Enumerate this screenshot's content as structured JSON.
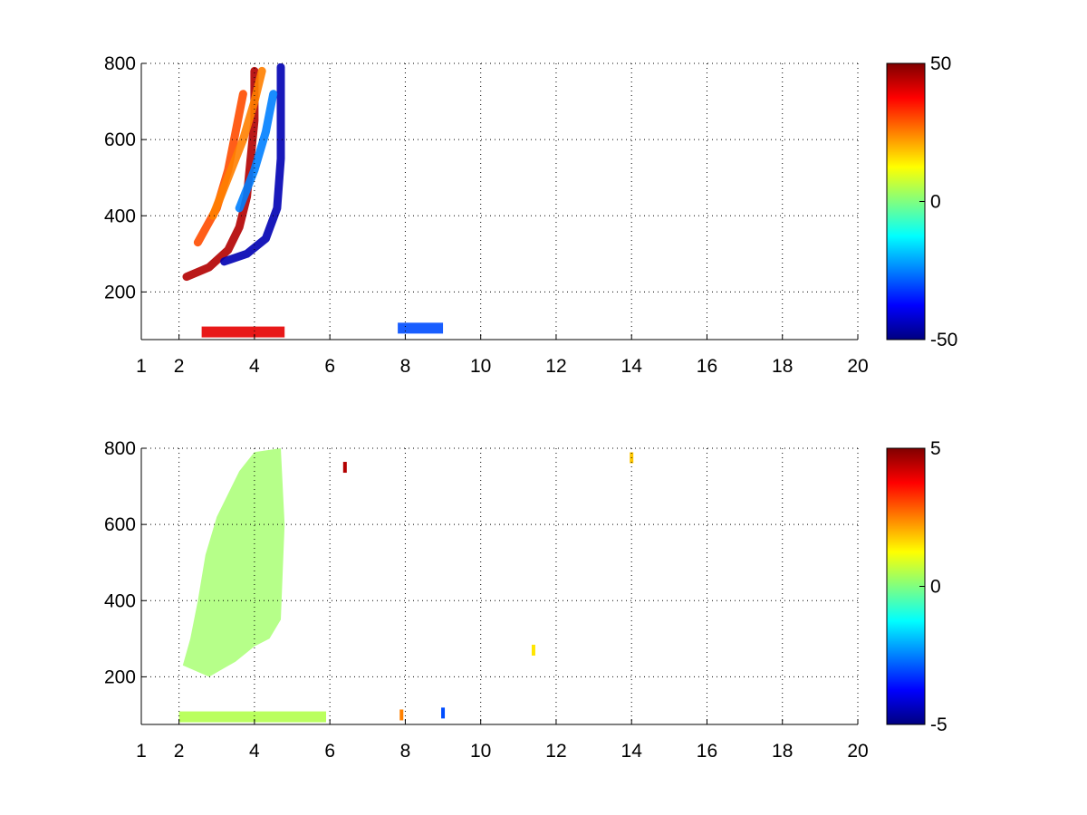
{
  "chart_data": [
    {
      "type": "heatmap",
      "title": "",
      "xlabel": "",
      "ylabel": "",
      "x_scale": "linear",
      "xlim": [
        1,
        20
      ],
      "ylim": [
        75,
        800
      ],
      "x_ticks": [
        1,
        2,
        4,
        6,
        8,
        10,
        12,
        14,
        16,
        18,
        20
      ],
      "y_ticks": [
        200,
        400,
        600,
        800
      ],
      "grid": true,
      "colormap": "jet",
      "colorbar": {
        "range": [
          -50,
          50
        ],
        "ticks": [
          50,
          0,
          -50
        ]
      },
      "features": [
        {
          "kind": "curve",
          "sign": "positive",
          "value": 45,
          "points": [
            [
              2.2,
              240
            ],
            [
              2.8,
              265
            ],
            [
              3.3,
              310
            ],
            [
              3.6,
              370
            ],
            [
              3.8,
              450
            ],
            [
              3.9,
              550
            ],
            [
              4.0,
              650
            ],
            [
              4.0,
              780
            ]
          ]
        },
        {
          "kind": "curve",
          "sign": "positive",
          "value": 30,
          "points": [
            [
              2.5,
              330
            ],
            [
              3.0,
              420
            ],
            [
              3.3,
              520
            ],
            [
              3.5,
              620
            ],
            [
              3.7,
              720
            ]
          ]
        },
        {
          "kind": "curve",
          "sign": "positive",
          "value": 25,
          "points": [
            [
              2.9,
              400
            ],
            [
              3.3,
              500
            ],
            [
              3.7,
              600
            ],
            [
              4.0,
              700
            ],
            [
              4.2,
              780
            ]
          ]
        },
        {
          "kind": "curve",
          "sign": "negative",
          "value": -45,
          "points": [
            [
              3.2,
              280
            ],
            [
              3.8,
              300
            ],
            [
              4.3,
              340
            ],
            [
              4.6,
              420
            ],
            [
              4.7,
              550
            ],
            [
              4.7,
              650
            ],
            [
              4.7,
              790
            ]
          ]
        },
        {
          "kind": "curve",
          "sign": "negative",
          "value": -25,
          "points": [
            [
              3.6,
              420
            ],
            [
              4.0,
              520
            ],
            [
              4.3,
              620
            ],
            [
              4.5,
              720
            ]
          ]
        },
        {
          "kind": "band",
          "sign": "positive",
          "value": 40,
          "x_range": [
            2.6,
            4.8
          ],
          "y": 95
        },
        {
          "kind": "band",
          "sign": "negative",
          "value": -30,
          "x_range": [
            7.8,
            9.0
          ],
          "y": 105
        }
      ]
    },
    {
      "type": "heatmap",
      "title": "",
      "xlabel": "",
      "ylabel": "",
      "x_scale": "linear",
      "xlim": [
        1,
        20
      ],
      "ylim": [
        75,
        800
      ],
      "x_ticks": [
        1,
        2,
        4,
        6,
        8,
        10,
        12,
        14,
        16,
        18,
        20
      ],
      "y_ticks": [
        200,
        400,
        600,
        800
      ],
      "grid": true,
      "colormap": "jet",
      "colorbar": {
        "range": [
          -5,
          5
        ],
        "ticks": [
          5,
          0,
          -5
        ]
      },
      "features": [
        {
          "kind": "region",
          "value": 0.3,
          "points": [
            [
              2.1,
              230
            ],
            [
              2.8,
              200
            ],
            [
              3.5,
              240
            ],
            [
              4.0,
              280
            ],
            [
              4.4,
              300
            ],
            [
              4.7,
              350
            ],
            [
              4.8,
              600
            ],
            [
              4.7,
              800
            ],
            [
              4.0,
              790
            ],
            [
              3.6,
              740
            ],
            [
              3.0,
              620
            ],
            [
              2.7,
              520
            ],
            [
              2.5,
              400
            ],
            [
              2.3,
              300
            ]
          ]
        },
        {
          "kind": "band",
          "value": 0.5,
          "x_range": [
            2.0,
            5.9
          ],
          "y": 95
        },
        {
          "kind": "spot",
          "value": 4.5,
          "x": 6.4,
          "y": 750
        },
        {
          "kind": "spot",
          "value": 1.5,
          "x": 11.4,
          "y": 270
        },
        {
          "kind": "spot",
          "value": 1.8,
          "x": 14.0,
          "y": 775
        },
        {
          "kind": "spot",
          "value": -3.0,
          "x": 9.0,
          "y": 105
        },
        {
          "kind": "spot",
          "value": 2.5,
          "x": 7.9,
          "y": 100
        }
      ]
    }
  ]
}
